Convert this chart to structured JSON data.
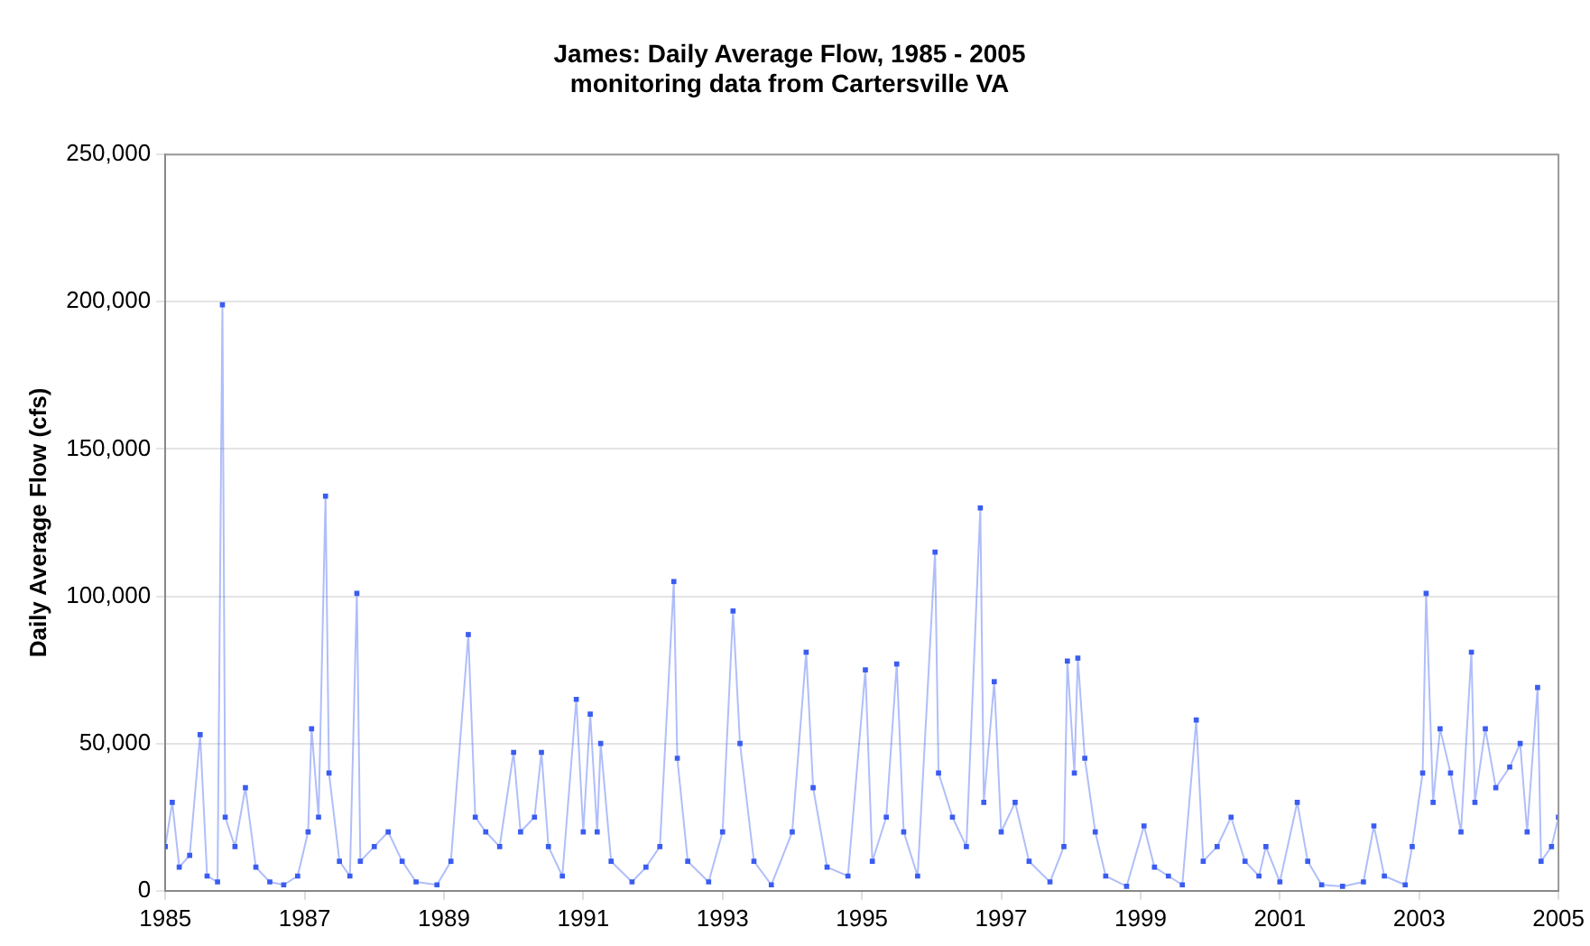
{
  "chart_data": {
    "type": "line",
    "title": "James: Daily Average Flow, 1985 - 2005",
    "subtitle": "monitoring data from Cartersville VA",
    "ylabel": "Daily Average Flow (cfs)",
    "x": [
      1985.0,
      1985.1,
      1985.2,
      1985.35,
      1985.5,
      1985.6,
      1985.75,
      1985.82,
      1985.86,
      1986.0,
      1986.15,
      1986.3,
      1986.5,
      1986.7,
      1986.9,
      1987.05,
      1987.1,
      1987.2,
      1987.3,
      1987.35,
      1987.5,
      1987.65,
      1987.75,
      1987.8,
      1988.0,
      1988.2,
      1988.4,
      1988.6,
      1988.9,
      1989.1,
      1989.35,
      1989.45,
      1989.6,
      1989.8,
      1990.0,
      1990.1,
      1990.3,
      1990.4,
      1990.5,
      1990.7,
      1990.9,
      1991.0,
      1991.1,
      1991.2,
      1991.25,
      1991.4,
      1991.7,
      1991.9,
      1992.1,
      1992.3,
      1992.35,
      1992.5,
      1992.8,
      1993.0,
      1993.15,
      1993.25,
      1993.45,
      1993.7,
      1994.0,
      1994.2,
      1994.3,
      1994.5,
      1994.8,
      1995.05,
      1995.15,
      1995.35,
      1995.5,
      1995.6,
      1995.8,
      1996.05,
      1996.1,
      1996.3,
      1996.5,
      1996.7,
      1996.75,
      1996.9,
      1997.0,
      1997.2,
      1997.4,
      1997.7,
      1997.9,
      1997.95,
      1998.05,
      1998.1,
      1998.2,
      1998.35,
      1998.5,
      1998.8,
      1999.05,
      1999.2,
      1999.4,
      1999.6,
      1999.8,
      1999.9,
      2000.1,
      2000.3,
      2000.5,
      2000.7,
      2000.8,
      2001.0,
      2001.25,
      2001.4,
      2001.6,
      2001.9,
      2002.2,
      2002.35,
      2002.5,
      2002.8,
      2002.9,
      2003.05,
      2003.1,
      2003.2,
      2003.3,
      2003.45,
      2003.6,
      2003.75,
      2003.8,
      2003.95,
      2004.1,
      2004.3,
      2004.45,
      2004.55,
      2004.7,
      2004.75,
      2004.9,
      2005.0
    ],
    "values": [
      15000,
      30000,
      8000,
      12000,
      53000,
      5000,
      3000,
      199000,
      25000,
      15000,
      35000,
      8000,
      3000,
      2000,
      5000,
      20000,
      55000,
      25000,
      134000,
      40000,
      10000,
      5000,
      101000,
      10000,
      15000,
      20000,
      10000,
      3000,
      2000,
      10000,
      87000,
      25000,
      20000,
      15000,
      47000,
      20000,
      25000,
      47000,
      15000,
      5000,
      65000,
      20000,
      60000,
      20000,
      50000,
      10000,
      3000,
      8000,
      15000,
      105000,
      45000,
      10000,
      3000,
      20000,
      95000,
      50000,
      10000,
      2000,
      20000,
      81000,
      35000,
      8000,
      5000,
      75000,
      10000,
      25000,
      77000,
      20000,
      5000,
      115000,
      40000,
      25000,
      15000,
      130000,
      30000,
      71000,
      20000,
      30000,
      10000,
      3000,
      15000,
      78000,
      40000,
      79000,
      45000,
      20000,
      5000,
      1500,
      22000,
      8000,
      5000,
      2000,
      58000,
      10000,
      15000,
      25000,
      10000,
      5000,
      15000,
      3000,
      30000,
      10000,
      2000,
      1500,
      3000,
      22000,
      5000,
      2000,
      15000,
      40000,
      101000,
      30000,
      55000,
      40000,
      20000,
      81000,
      30000,
      55000,
      35000,
      42000,
      50000,
      20000,
      69000,
      10000,
      15000,
      25000
    ],
    "color": "#3a5cf0",
    "marker": "square",
    "grid": "y",
    "legend": false,
    "xlim": [
      1985,
      2005
    ],
    "xticks": [
      1985,
      1987,
      1989,
      1991,
      1993,
      1995,
      1997,
      1999,
      2001,
      2003,
      2005
    ],
    "ylim": [
      0,
      250000
    ],
    "yticks": [
      {
        "value": 0,
        "label": "0"
      },
      {
        "value": 50000,
        "label": "50,000"
      },
      {
        "value": 100000,
        "label": "100,000"
      },
      {
        "value": 150000,
        "label": "150,000"
      },
      {
        "value": 200000,
        "label": "200,000"
      },
      {
        "value": 250000,
        "label": "250,000"
      }
    ]
  }
}
